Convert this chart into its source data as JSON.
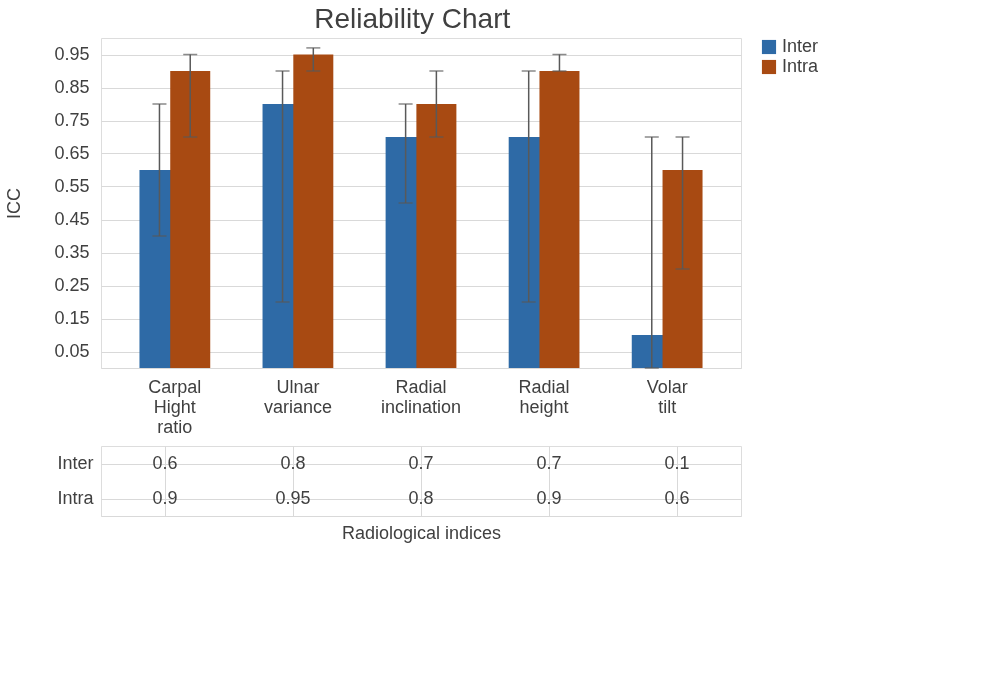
{
  "chart_data": {
    "type": "bar",
    "title": "Reliability Chart",
    "xlabel": "Radiological indices",
    "ylabel": "ICC",
    "categories": [
      "Carpal Hight ratio",
      "Ulnar variance",
      "Radial inclination",
      "Radial height",
      "Volar tilt"
    ],
    "series": [
      {
        "name": "Inter",
        "color": "#2e6aa6",
        "values": [
          0.6,
          0.8,
          0.7,
          0.7,
          0.1
        ],
        "errors": [
          [
            0.4,
            0.8
          ],
          [
            0.2,
            0.9
          ],
          [
            0.5,
            0.8
          ],
          [
            0.2,
            0.9
          ],
          [
            0.0,
            0.7
          ]
        ]
      },
      {
        "name": "Intra",
        "color": "#a84a12",
        "values": [
          0.9,
          0.95,
          0.8,
          0.9,
          0.6
        ],
        "errors": [
          [
            0.7,
            0.95
          ],
          [
            0.9,
            0.97
          ],
          [
            0.7,
            0.9
          ],
          [
            0.9,
            0.95
          ],
          [
            0.3,
            0.7
          ]
        ]
      }
    ],
    "ylim": [
      0,
      1
    ],
    "yticks": [
      0.05,
      0.15,
      0.25,
      0.35,
      0.45,
      0.55,
      0.65,
      0.75,
      0.85,
      0.95
    ],
    "grid": "y",
    "legend": "right",
    "data_labels": true
  }
}
